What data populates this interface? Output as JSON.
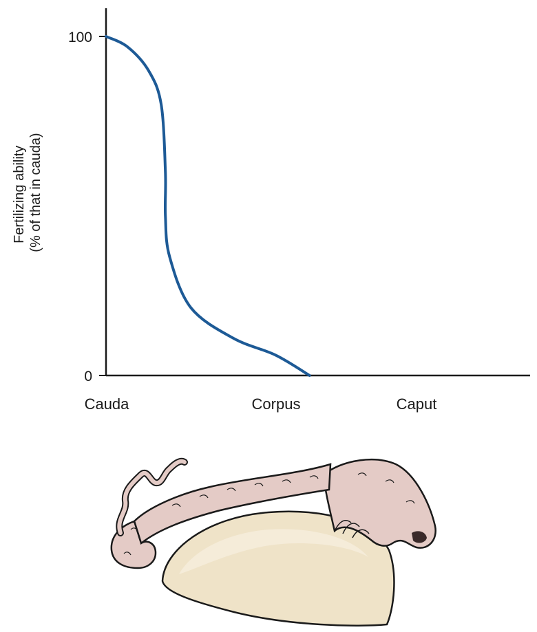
{
  "chart_data": {
    "type": "line",
    "title": "",
    "ylabel": "Fertilizing ability",
    "ylabel_line2": "(% of that in cauda)",
    "xlabel": "",
    "categories": [
      "Cauda",
      "Corpus",
      "Caput"
    ],
    "ylim": [
      0,
      100
    ],
    "yticks": [
      "100",
      "0"
    ],
    "x_position_scale": "fraction of distance from cauda toward caput (0 = cauda)",
    "series": [
      {
        "color": "#1d5a96",
        "x": [
          0.0,
          0.05,
          0.1,
          0.13,
          0.14,
          0.14,
          0.15,
          0.2,
          0.3,
          0.4,
          0.48
        ],
        "y": [
          100,
          97,
          90,
          80,
          60,
          47,
          35,
          20,
          11,
          6,
          0
        ]
      }
    ]
  },
  "illustration": {
    "name": "epididymis and testis drawing",
    "testis_color": "#efe3c8",
    "epididymis_color": "#e4cbc6"
  }
}
